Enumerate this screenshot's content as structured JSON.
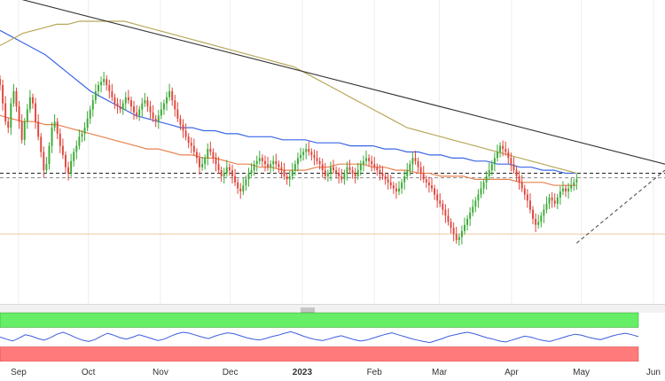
{
  "chart_data": [
    {
      "type": "line",
      "panel": "price",
      "title": "",
      "xlabel": "",
      "ylabel": "",
      "x_ticks": [
        "Sep",
        "Oct",
        "Nov",
        "Dec",
        "2023",
        "Feb",
        "Mar",
        "Apr",
        "May",
        "Jun"
      ],
      "x_tick_days": [
        0,
        30,
        61,
        91,
        122,
        153,
        181,
        212,
        242,
        273
      ],
      "x_range_days": [
        -8,
        278
      ],
      "y_range": [
        0,
        100
      ],
      "grid": true,
      "legend": "none",
      "candles": {
        "up_color": "#3aaa35",
        "down_color": "#e0453c",
        "closes": [
          72,
          66,
          60,
          58,
          66,
          70,
          65,
          60,
          54,
          60,
          64,
          68,
          66,
          60,
          55,
          50,
          44,
          46,
          52,
          58,
          60,
          56,
          52,
          49,
          45,
          43,
          47,
          50,
          52,
          55,
          56,
          58,
          61,
          64,
          67,
          70,
          72,
          73,
          74,
          72,
          70,
          68,
          66,
          65,
          64,
          66,
          68,
          67,
          65,
          63,
          62,
          64,
          66,
          67,
          65,
          63,
          61,
          60,
          62,
          64,
          66,
          68,
          70,
          67,
          64,
          61,
          59,
          57,
          55,
          53,
          52,
          50,
          48,
          45,
          46,
          48,
          51,
          50,
          48,
          46,
          44,
          42,
          43,
          45,
          44,
          42,
          40,
          38,
          37,
          39,
          41,
          43,
          44,
          46,
          47,
          48,
          47,
          46,
          45,
          46,
          47,
          46,
          45,
          44,
          42,
          41,
          42,
          44,
          46,
          48,
          49,
          50,
          51,
          50,
          49,
          48,
          47,
          46,
          44,
          42,
          43,
          45,
          44,
          43,
          42,
          41,
          43,
          45,
          44,
          43,
          42,
          44,
          46,
          47,
          48,
          47,
          46,
          45,
          44,
          43,
          42,
          41,
          40,
          39,
          38,
          37,
          38,
          40,
          42,
          44,
          46,
          48,
          47,
          45,
          43,
          41,
          40,
          39,
          38,
          36,
          34,
          33,
          31,
          29,
          27,
          25,
          23,
          21,
          22,
          24,
          26,
          28,
          30,
          32,
          34,
          36,
          38,
          40,
          42,
          44,
          46,
          48,
          50,
          52,
          51,
          50,
          48,
          46,
          44,
          42,
          40,
          38,
          36,
          34,
          31,
          28,
          26,
          27,
          29,
          31,
          33,
          35,
          34,
          33,
          35,
          37,
          38,
          37,
          38,
          39,
          40,
          41
        ]
      },
      "series": [
        {
          "name": "",
          "color": "#e8834e",
          "values": [
            62,
            61,
            60,
            60,
            59,
            59,
            58,
            57,
            56,
            55,
            54,
            53,
            52,
            51,
            51,
            50,
            49,
            49,
            48,
            48,
            47,
            46,
            46,
            45,
            45,
            44,
            44,
            44,
            45,
            45,
            46,
            46,
            46,
            45,
            45,
            44,
            44,
            43,
            43,
            42,
            42,
            42,
            41,
            41,
            41,
            41,
            40,
            40,
            40,
            39,
            39,
            39
          ]
        },
        {
          "name": "",
          "color": "#3b66e6",
          "values": [
            90,
            88,
            86,
            84,
            82,
            79,
            76,
            73,
            70,
            68,
            66,
            64,
            62,
            61,
            60,
            59,
            58,
            58,
            57,
            57,
            56,
            56,
            55,
            55,
            55,
            54,
            54,
            54,
            53,
            53,
            53,
            52,
            52,
            52,
            51,
            51,
            50,
            50,
            49,
            49,
            48,
            48,
            47,
            47,
            46,
            46,
            45,
            45,
            44,
            44,
            43,
            43
          ]
        },
        {
          "name": "",
          "color": "#b8a85a",
          "values": [
            85,
            87,
            89,
            90,
            91,
            92,
            92,
            93,
            93,
            93,
            93,
            93,
            92,
            91,
            90,
            89,
            88,
            87,
            86,
            85,
            84,
            83,
            82,
            81,
            80,
            79,
            78,
            76,
            74,
            72,
            70,
            68,
            66,
            64,
            62,
            60,
            58,
            57,
            56,
            55,
            54,
            53,
            52,
            51,
            50,
            49,
            48,
            47,
            46,
            45,
            44,
            43
          ]
        }
      ],
      "trendlines": [
        {
          "color": "#333333",
          "style": "solid",
          "from": [
            -8,
            102
          ],
          "to": [
            278,
            46
          ]
        },
        {
          "color": "#555555",
          "style": "dashed",
          "from": [
            240,
            20
          ],
          "to": [
            278,
            44
          ]
        }
      ],
      "hlines": [
        {
          "value": 43,
          "color": "#222222",
          "style": "dashed"
        },
        {
          "value": 41.5,
          "color": "#888888",
          "style": "dashed"
        },
        {
          "value": 23,
          "color": "#f1c8a0",
          "style": "solid"
        }
      ]
    },
    {
      "type": "line",
      "panel": "oscillator",
      "title": "",
      "xlabel": "",
      "ylabel": "",
      "y_range": [
        0,
        100
      ],
      "grid": false,
      "legend": "none",
      "upper_zone_color": "#66ee66",
      "lower_zone_color": "#ff7b7b",
      "upper_zone_range": [
        70,
        100
      ],
      "lower_zone_range": [
        0,
        30
      ],
      "series": [
        {
          "name": "",
          "color": "#3b5de0",
          "values": [
            50,
            46,
            42,
            48,
            55,
            52,
            47,
            44,
            49,
            56,
            60,
            55,
            49,
            44,
            41,
            45,
            52,
            58,
            54,
            49,
            46,
            50,
            55,
            51,
            47,
            43,
            46,
            52,
            57,
            60,
            58,
            54,
            50,
            47,
            52,
            56,
            59,
            57,
            53,
            49,
            46,
            44,
            47,
            51,
            54,
            58,
            61,
            57,
            52,
            48,
            45,
            43,
            46,
            50,
            53,
            49,
            45,
            42,
            44,
            48,
            52,
            56,
            59,
            55,
            51,
            47,
            44,
            41,
            39,
            43,
            47,
            52,
            55,
            58,
            60,
            57,
            53,
            49,
            46,
            42,
            40,
            44,
            48,
            52,
            50,
            46,
            43,
            41,
            45,
            49,
            53,
            56,
            54,
            50,
            47,
            45,
            49,
            53,
            56,
            58,
            55,
            51
          ]
        }
      ]
    }
  ]
}
